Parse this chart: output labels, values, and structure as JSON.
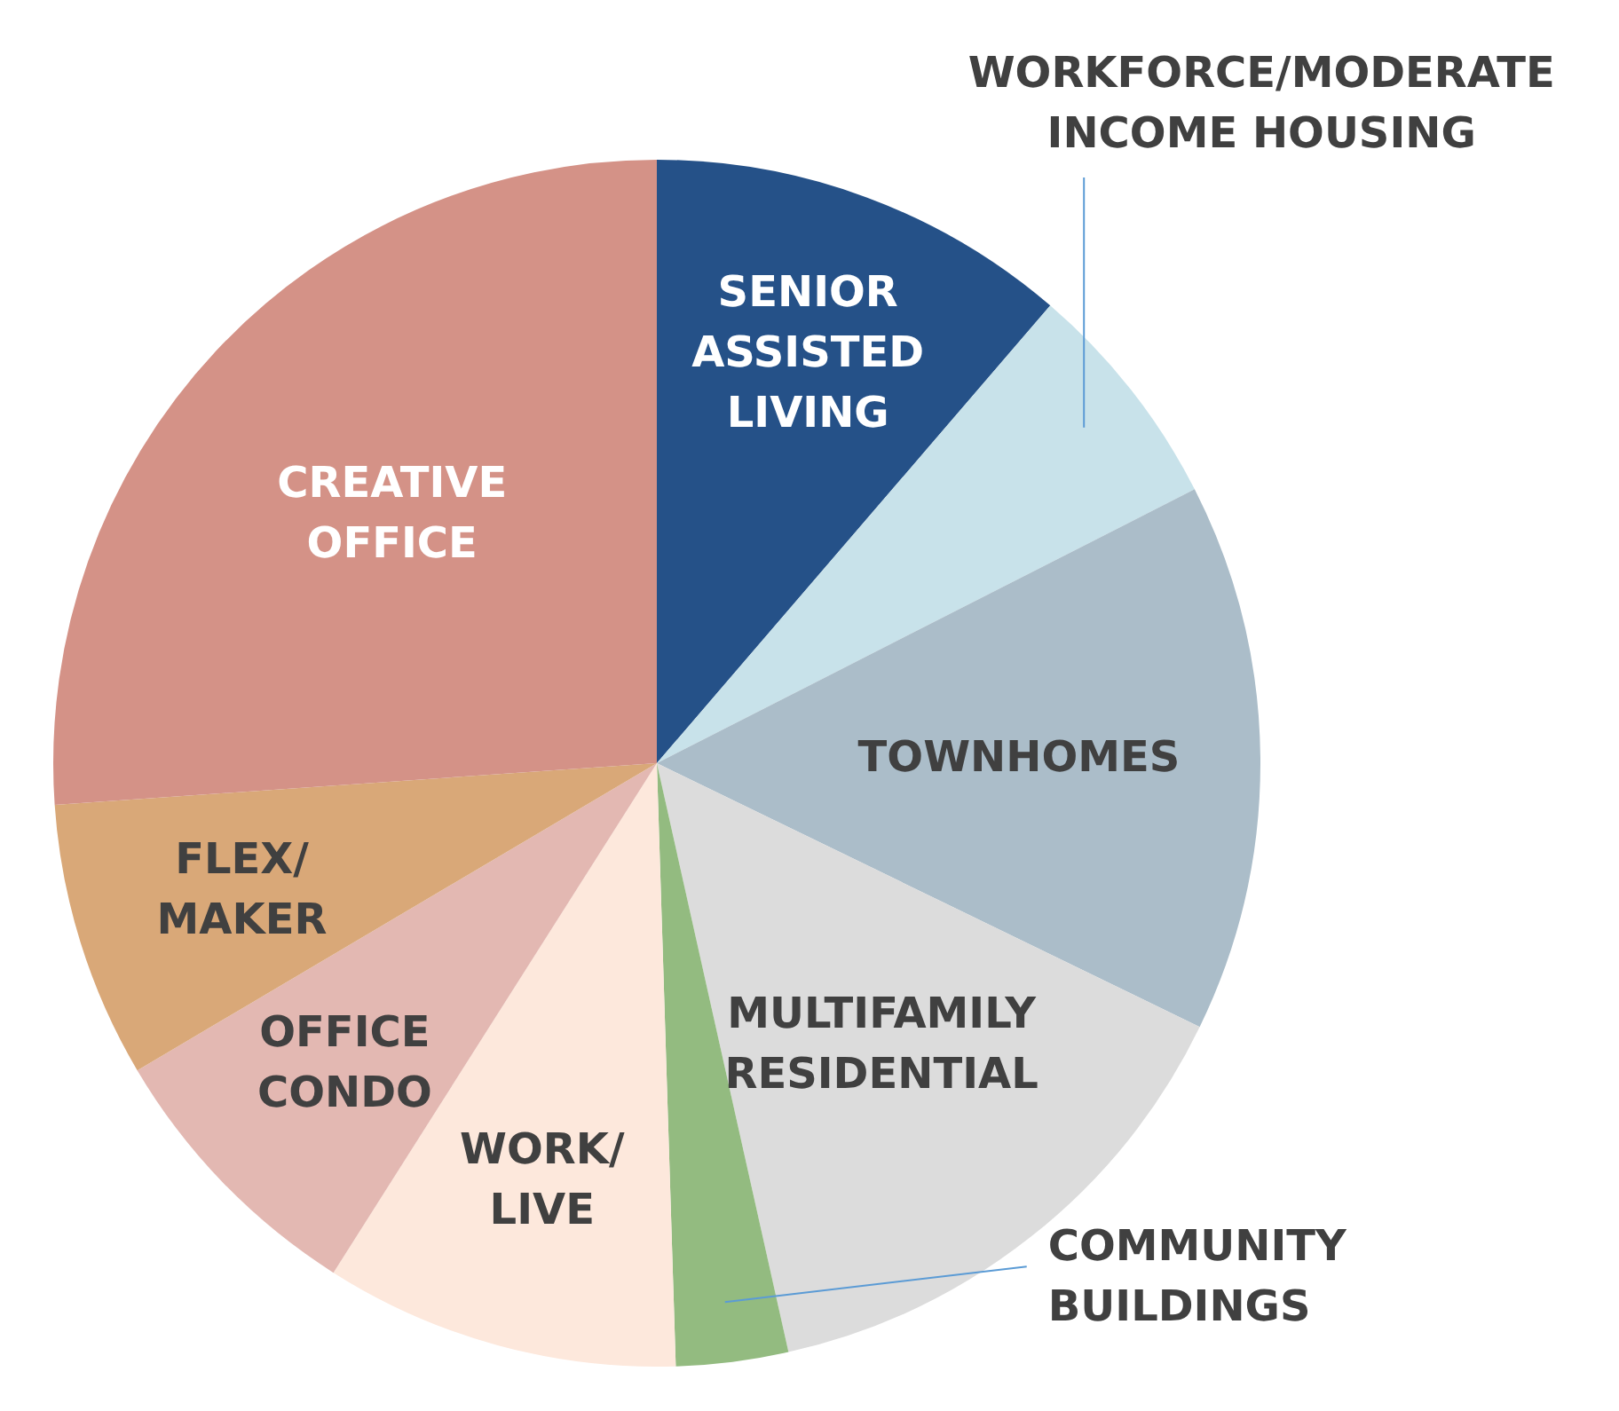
{
  "chart_data": {
    "type": "pie",
    "categories": [
      "SENIOR\nASSISTED\nLIVING",
      "WORKFORCE/MODERATE\nINCOME HOUSING",
      "TOWNHOMES",
      "MULTIFAMILY\nRESIDENTIAL",
      "COMMUNITY\nBUILDINGS",
      "WORK/\nLIVE",
      "OFFICE\nCONDO",
      "FLEX/\nMAKER",
      "CREATIVE\nOFFICE"
    ],
    "values": [
      11.3,
      6.2,
      14.7,
      14.3,
      3.0,
      9.5,
      7.5,
      7.4,
      26.1
    ],
    "colors": [
      "#255188",
      "#c8e2ea",
      "#abbdc9",
      "#dcdcdc",
      "#93bb80",
      "#fde8dc",
      "#e3b8b2",
      "#d9a878",
      "#d49287"
    ]
  }
}
